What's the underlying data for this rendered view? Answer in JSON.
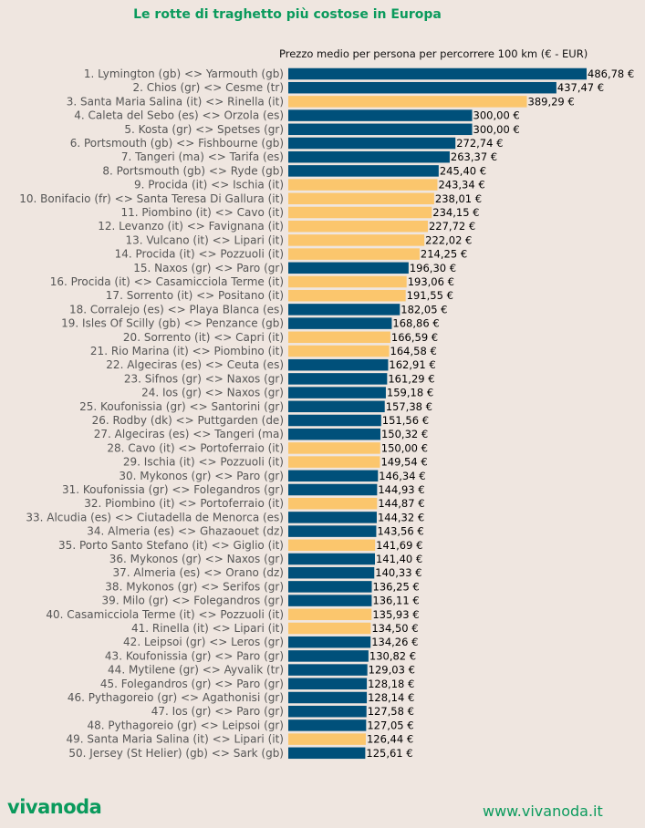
{
  "chart_data": {
    "type": "bar",
    "orientation": "horizontal",
    "title": "Le rotte di traghetto più costose in Europa",
    "xlabel": "Prezzo medio per persona per percorrere 100 km (€ - EUR)",
    "ylabel": "",
    "xlim": [
      0,
      500
    ],
    "grid": false,
    "colors": {
      "default": "#00507a",
      "italy_domestic": "#fbc66d"
    },
    "categories": [
      "1. Lymington (gb) <> Yarmouth (gb)",
      "2. Chios (gr) <> Cesme (tr)",
      "3. Santa Maria Salina (it) <> Rinella (it)",
      "4. Caleta del Sebo (es) <> Orzola (es)",
      "5. Kosta (gr) <> Spetses (gr)",
      "6. Portsmouth (gb) <> Fishbourne (gb)",
      "7. Tangeri (ma) <> Tarifa (es)",
      "8. Portsmouth (gb) <> Ryde (gb)",
      "9. Procida (it) <> Ischia (it)",
      "10. Bonifacio (fr) <> Santa Teresa Di Gallura (it)",
      "11. Piombino (it) <> Cavo (it)",
      "12. Levanzo (it) <> Favignana (it)",
      "13. Vulcano (it) <> Lipari (it)",
      "14. Procida (it) <> Pozzuoli (it)",
      "15. Naxos (gr) <> Paro (gr)",
      "16. Procida (it) <> Casamicciola Terme (it)",
      "17. Sorrento (it) <> Positano (it)",
      "18. Corralejo (es) <> Playa Blanca (es)",
      "19. Isles Of Scilly (gb) <> Penzance (gb)",
      "20. Sorrento (it) <> Capri (it)",
      "21. Rio Marina (it) <> Piombino (it)",
      "22. Algeciras (es) <> Ceuta (es)",
      "23. Sifnos (gr) <> Naxos (gr)",
      "24. Ios (gr) <> Naxos (gr)",
      "25. Koufonissia (gr) <> Santorini (gr)",
      "26. Rodby (dk) <> Puttgarden (de)",
      "27. Algeciras (es) <> Tangeri (ma)",
      "28. Cavo (it) <> Portoferraio (it)",
      "29. Ischia (it) <> Pozzuoli (it)",
      "30. Mykonos (gr) <> Paro (gr)",
      "31. Koufonissia (gr) <> Folegandros (gr)",
      "32. Piombino (it) <> Portoferraio (it)",
      "33. Alcudia (es) <> Ciutadella de Menorca (es)",
      "34. Almeria (es) <> Ghazaouet (dz)",
      "35. Porto Santo Stefano (it) <> Giglio (it)",
      "36. Mykonos (gr) <> Naxos (gr)",
      "37. Almeria (es) <> Orano (dz)",
      "38. Mykonos (gr) <> Serifos (gr)",
      "39. Milo (gr) <> Folegandros (gr)",
      "40. Casamicciola Terme (it) <> Pozzuoli (it)",
      "41. Rinella (it) <> Lipari (it)",
      "42. Leipsoi (gr) <> Leros (gr)",
      "43. Koufonissia (gr) <> Paro (gr)",
      "44. Mytilene (gr) <> Ayvalik (tr)",
      "45. Folegandros (gr) <> Paro (gr)",
      "46. Pythagoreio (gr) <> Agathonisi (gr)",
      "47. Ios (gr) <> Paro (gr)",
      "48. Pythagoreio (gr) <> Leipsoi (gr)",
      "49. Santa Maria Salina (it) <> Lipari (it)",
      "50. Jersey (St Helier) (gb) <> Sark (gb)"
    ],
    "values": [
      486.78,
      437.47,
      389.29,
      300.0,
      300.0,
      272.74,
      263.37,
      245.4,
      243.34,
      238.01,
      234.15,
      227.72,
      222.02,
      214.25,
      196.3,
      193.06,
      191.55,
      182.05,
      168.86,
      166.59,
      164.58,
      162.91,
      161.29,
      159.18,
      157.38,
      151.56,
      150.32,
      150.0,
      149.54,
      146.34,
      144.93,
      144.87,
      144.32,
      143.56,
      141.69,
      141.4,
      140.33,
      136.25,
      136.11,
      135.93,
      134.5,
      134.26,
      130.82,
      129.03,
      128.18,
      128.14,
      127.58,
      127.05,
      126.44,
      125.61
    ],
    "labels": [
      "486,78 €",
      "437,47 €",
      "389,29 €",
      "300,00 €",
      "300,00 €",
      "272,74 €",
      "263,37 €",
      "245,40 €",
      "243,34 €",
      "238,01 €",
      "234,15 €",
      "227,72 €",
      "222,02 €",
      "214,25 €",
      "196,30 €",
      "193,06 €",
      "191,55 €",
      "182,05 €",
      "168,86 €",
      "166,59 €",
      "164,58 €",
      "162,91 €",
      "161,29 €",
      "159,18 €",
      "157,38 €",
      "151,56 €",
      "150,32 €",
      "150,00 €",
      "149,54 €",
      "146,34 €",
      "144,93 €",
      "144,87 €",
      "144,32 €",
      "143,56 €",
      "141,69 €",
      "141,40 €",
      "140,33 €",
      "136,25 €",
      "136,11 €",
      "135,93 €",
      "134,50 €",
      "134,26 €",
      "130,82 €",
      "129,03 €",
      "128,18 €",
      "128,14 €",
      "127,58 €",
      "127,05 €",
      "126,44 €",
      "125,61 €"
    ],
    "highlight": [
      false,
      false,
      true,
      false,
      false,
      false,
      false,
      false,
      true,
      true,
      true,
      true,
      true,
      true,
      false,
      true,
      true,
      false,
      false,
      true,
      true,
      false,
      false,
      false,
      false,
      false,
      false,
      true,
      true,
      false,
      false,
      true,
      false,
      false,
      true,
      false,
      false,
      false,
      false,
      true,
      true,
      false,
      false,
      false,
      false,
      false,
      false,
      false,
      true,
      false
    ]
  },
  "footer": {
    "logo": "vivanoda",
    "website": "www.vivanoda.it"
  }
}
